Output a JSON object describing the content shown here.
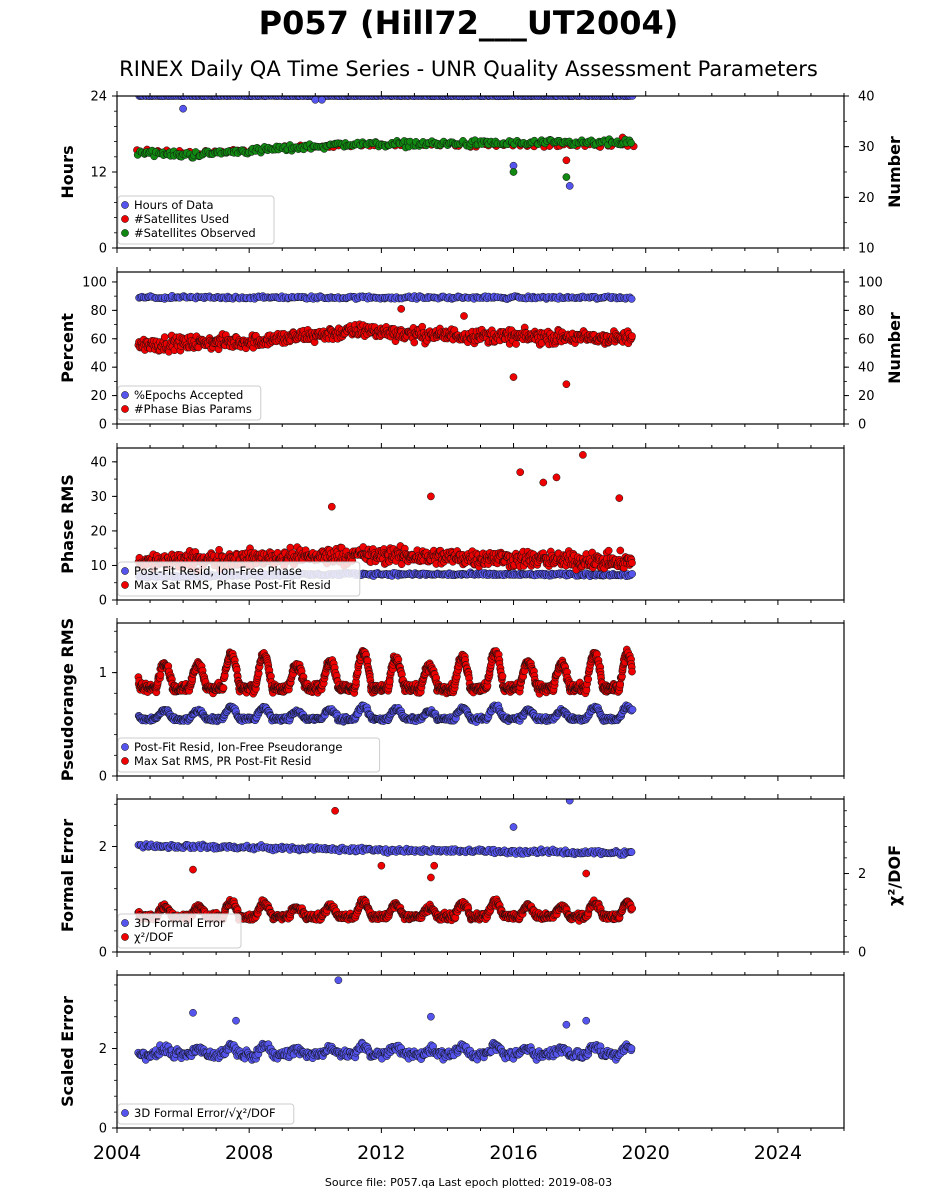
{
  "header": {
    "title": "P057 (Hill72___UT2004)",
    "subtitle": "RINEX Daily QA Time Series - UNR Quality Assessment Parameters"
  },
  "footer": {
    "source": "Source file: P057.qa Last epoch plotted: 2019-08-03"
  },
  "colors": {
    "blue": "#5555ee",
    "red": "#ee0000",
    "green": "#118811",
    "edge": "#111111"
  },
  "chart_data": [
    {
      "type": "scatter",
      "x_range": [
        2004,
        2026
      ],
      "x_ticks": [
        "2004",
        "2008",
        "2012",
        "2016",
        "2020",
        "2024"
      ],
      "ylabel": "Hours",
      "ylim": [
        0,
        24
      ],
      "yticks": [
        0,
        12,
        24
      ],
      "ylabel_right": "Number",
      "ylim_right": [
        10,
        40
      ],
      "yticks_right": [
        10,
        20,
        30,
        40
      ],
      "legend_position": "lower-left",
      "series": [
        {
          "name": "Hours of Data",
          "color": "blue",
          "axis": "left",
          "level": 24.0,
          "spread": 0.05,
          "step": 0.05,
          "start": 2004.65,
          "end": 2019.6,
          "outliers": [
            [
              2006.0,
              22.0
            ],
            [
              2010.0,
              23.4
            ],
            [
              2010.2,
              23.4
            ],
            [
              2016.0,
              13.0
            ],
            [
              2017.7,
              9.8
            ]
          ]
        },
        {
          "name": "#Satellites Used",
          "color": "red",
          "axis": "right",
          "level": 30.0,
          "spread": 0.5,
          "step": 0.18,
          "start": 2004.65,
          "end": 2019.6,
          "trend": [
            [
              2004.6,
              29.3
            ],
            [
              2006.0,
              28.8
            ],
            [
              2008.0,
              29.5
            ],
            [
              2011.0,
              30.2
            ],
            [
              2019.6,
              30.2
            ]
          ],
          "outliers": [
            [
              2006.2,
              29.0
            ],
            [
              2009.5,
              30.0
            ],
            [
              2017.6,
              27.3
            ],
            [
              2019.3,
              31.8
            ]
          ]
        },
        {
          "name": "#Satellites Observed",
          "color": "green",
          "axis": "right",
          "level": 29.8,
          "spread": 0.9,
          "step": 0.055,
          "start": 2004.65,
          "end": 2019.6,
          "trend": [
            [
              2004.6,
              29.0
            ],
            [
              2006.0,
              28.3
            ],
            [
              2008.0,
              29.2
            ],
            [
              2011.0,
              30.5
            ],
            [
              2019.6,
              30.8
            ]
          ],
          "outliers": [
            [
              2016.0,
              25.0
            ],
            [
              2017.6,
              24.0
            ]
          ]
        }
      ]
    },
    {
      "type": "scatter",
      "x_range": [
        2004,
        2026
      ],
      "x_ticks": [
        "2004",
        "2008",
        "2012",
        "2016",
        "2020",
        "2024"
      ],
      "ylabel": "Percent",
      "ylim": [
        0,
        107
      ],
      "yticks": [
        0,
        20,
        40,
        60,
        80,
        100
      ],
      "ylabel_right": "Number",
      "ylim_right": [
        0,
        107
      ],
      "yticks_right": [
        0,
        20,
        40,
        60,
        80,
        100
      ],
      "legend_position": "lower-left",
      "series": [
        {
          "name": "%Epochs Accepted",
          "color": "blue",
          "axis": "left",
          "level": 89,
          "spread": 1.5,
          "step": 0.055,
          "start": 2004.65,
          "end": 2019.6,
          "outliers": []
        },
        {
          "name": "#Phase Bias Params",
          "color": "red",
          "axis": "right",
          "level": 60,
          "spread": 7,
          "step": 0.022,
          "start": 2004.65,
          "end": 2019.6,
          "trend": [
            [
              2004.6,
              56
            ],
            [
              2008.0,
              58
            ],
            [
              2011.5,
              66
            ],
            [
              2013.0,
              63
            ],
            [
              2019.6,
              60
            ]
          ],
          "outliers": [
            [
              2016.0,
              33
            ],
            [
              2017.6,
              28
            ],
            [
              2012.6,
              81
            ],
            [
              2014.5,
              76
            ]
          ]
        }
      ]
    },
    {
      "type": "scatter",
      "x_range": [
        2004,
        2026
      ],
      "x_ticks": [
        "2004",
        "2008",
        "2012",
        "2016",
        "2020",
        "2024"
      ],
      "ylabel": "Phase RMS",
      "ylim": [
        0,
        44
      ],
      "yticks": [
        0,
        10,
        20,
        30,
        40
      ],
      "legend_position": "lower-left",
      "series": [
        {
          "name": "Post-Fit Resid, Ion-Free Phase",
          "color": "blue",
          "axis": "left",
          "level": 7.3,
          "spread": 0.6,
          "step": 0.04,
          "start": 2004.65,
          "end": 2019.6,
          "trend": [
            [
              2004.6,
              6.8
            ],
            [
              2011.0,
              7.5
            ],
            [
              2019.6,
              7.3
            ]
          ],
          "outliers": []
        },
        {
          "name": "Max Sat RMS, Phase Post-Fit Resid",
          "color": "red",
          "axis": "left",
          "level": 11.5,
          "spread": 3.5,
          "step": 0.02,
          "start": 2004.65,
          "end": 2019.6,
          "trend": [
            [
              2004.6,
              11
            ],
            [
              2011.0,
              13
            ],
            [
              2014.0,
              12.5
            ],
            [
              2019.6,
              11
            ]
          ],
          "outliers": [
            [
              2016.2,
              37
            ],
            [
              2018.1,
              42
            ],
            [
              2017.3,
              35.5
            ],
            [
              2016.9,
              34
            ],
            [
              2019.2,
              29.5
            ],
            [
              2013.5,
              30
            ],
            [
              2010.5,
              27
            ]
          ]
        }
      ]
    },
    {
      "type": "scatter",
      "x_range": [
        2004,
        2026
      ],
      "x_ticks": [
        "2004",
        "2008",
        "2012",
        "2016",
        "2020",
        "2024"
      ],
      "ylabel": "Pseudorange RMS",
      "ylim": [
        0,
        1.48
      ],
      "yticks": [
        0,
        1
      ],
      "legend_position": "lower-left",
      "series": [
        {
          "name": "Post-Fit Resid, Ion-Free Pseudorange",
          "color": "blue",
          "axis": "left",
          "level": 0.55,
          "amp": 0.1,
          "spread": 0.03,
          "step": 0.02,
          "start": 2004.65,
          "end": 2019.6,
          "outliers": []
        },
        {
          "name": "Max Sat RMS, PR Post-Fit Resid",
          "color": "red",
          "axis": "left",
          "level": 0.85,
          "amp": 0.28,
          "spread": 0.06,
          "step": 0.012,
          "start": 2004.65,
          "end": 2019.6,
          "outliers": []
        }
      ]
    },
    {
      "type": "scatter",
      "x_range": [
        2004,
        2026
      ],
      "x_ticks": [
        "2004",
        "2008",
        "2012",
        "2016",
        "2020",
        "2024"
      ],
      "ylabel": "Formal Error",
      "ylim": [
        0,
        2.9
      ],
      "yticks": [
        0,
        2
      ],
      "ylabel_right": "χ²/DOF",
      "ylim_right": [
        0,
        3.9
      ],
      "yticks_right": [
        0,
        2
      ],
      "legend_position": "lower-left",
      "series": [
        {
          "name": "3D Formal Error",
          "color": "blue",
          "axis": "left",
          "level": 1.95,
          "spread": 0.06,
          "step": 0.045,
          "start": 2004.65,
          "end": 2019.6,
          "trend": [
            [
              2004.6,
              2.02
            ],
            [
              2012.0,
              1.93
            ],
            [
              2019.6,
              1.88
            ]
          ],
          "outliers": [
            [
              2016.0,
              2.37
            ],
            [
              2017.7,
              2.87
            ]
          ]
        },
        {
          "name": "χ²/DOF",
          "color": "red",
          "axis": "right",
          "level": 0.9,
          "amp": 0.3,
          "spread": 0.12,
          "step": 0.015,
          "start": 2004.65,
          "end": 2019.6,
          "outliers": [
            [
              2010.6,
              3.6
            ],
            [
              2012.0,
              2.2
            ],
            [
              2013.6,
              2.2
            ],
            [
              2013.5,
              1.9
            ],
            [
              2006.3,
              2.1
            ],
            [
              2018.2,
              2.0
            ]
          ]
        }
      ]
    },
    {
      "type": "scatter",
      "x_range": [
        2004,
        2026
      ],
      "x_ticks": [
        "2004",
        "2008",
        "2012",
        "2016",
        "2020",
        "2024"
      ],
      "ylabel": "Scaled Error",
      "ylim": [
        0,
        3.85
      ],
      "yticks": [
        0,
        2
      ],
      "legend_position": "lower-left",
      "series": [
        {
          "name": "3D Formal Error/√χ²/DOF",
          "color": "blue",
          "axis": "left",
          "level": 1.85,
          "amp": 0.18,
          "spread": 0.16,
          "step": 0.025,
          "start": 2004.65,
          "end": 2019.6,
          "outliers": [
            [
              2010.7,
              3.72
            ],
            [
              2006.3,
              2.9
            ],
            [
              2013.5,
              2.8
            ],
            [
              2018.2,
              2.7
            ],
            [
              2017.6,
              2.6
            ],
            [
              2007.6,
              2.7
            ]
          ]
        }
      ]
    }
  ]
}
